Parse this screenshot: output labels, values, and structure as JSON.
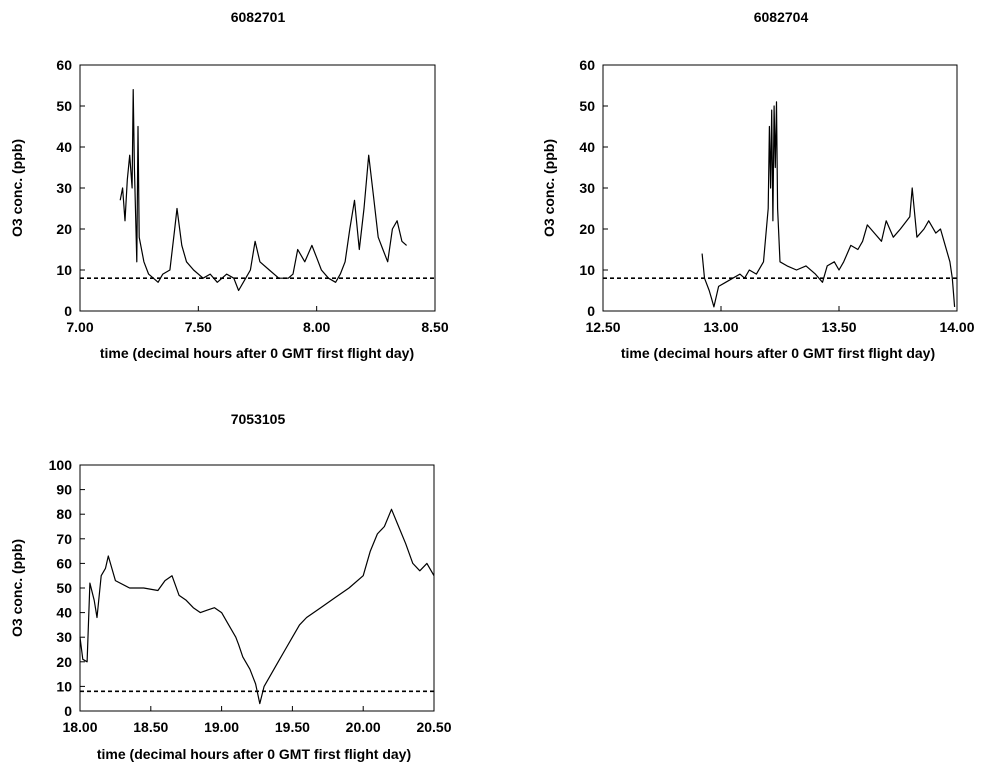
{
  "chart_data": [
    {
      "type": "line",
      "title": "6082701",
      "xlabel": "time  (decimal hours after 0 GMT first flight day)",
      "ylabel": "O3 conc.  (ppb)",
      "xlim": [
        7.0,
        8.5
      ],
      "ylim": [
        0,
        60
      ],
      "xticks": [
        "7.00",
        "7.50",
        "8.00",
        "8.50"
      ],
      "yticks": [
        "0",
        "10",
        "20",
        "30",
        "40",
        "50",
        "60"
      ],
      "threshold": 8,
      "grid": false,
      "x": [
        7.17,
        7.18,
        7.19,
        7.2,
        7.21,
        7.22,
        7.225,
        7.23,
        7.24,
        7.245,
        7.25,
        7.27,
        7.29,
        7.31,
        7.33,
        7.35,
        7.38,
        7.4,
        7.41,
        7.43,
        7.45,
        7.48,
        7.52,
        7.55,
        7.58,
        7.62,
        7.65,
        7.67,
        7.7,
        7.72,
        7.74,
        7.76,
        7.8,
        7.84,
        7.88,
        7.9,
        7.92,
        7.95,
        7.98,
        8.0,
        8.02,
        8.05,
        8.08,
        8.1,
        8.12,
        8.14,
        8.16,
        8.18,
        8.2,
        8.22,
        8.24,
        8.26,
        8.28,
        8.3,
        8.32,
        8.34,
        8.36,
        8.38
      ],
      "y": [
        27,
        30,
        22,
        32,
        38,
        30,
        54,
        35,
        12,
        45,
        18,
        12,
        9,
        8,
        7,
        9,
        10,
        20,
        25,
        16,
        12,
        10,
        8,
        9,
        7,
        9,
        8,
        5,
        8,
        10,
        17,
        12,
        10,
        8,
        8,
        9,
        15,
        12,
        16,
        13,
        10,
        8,
        7,
        9,
        12,
        20,
        27,
        15,
        25,
        38,
        28,
        18,
        15,
        12,
        20,
        22,
        17,
        16
      ]
    },
    {
      "type": "line",
      "title": "6082704",
      "xlabel": "time  (decimal hours after 0 GMT first flight day)",
      "ylabel": "O3 conc.  (ppb)",
      "xlim": [
        12.5,
        14.0
      ],
      "ylim": [
        0,
        60
      ],
      "xticks": [
        "12.50",
        "13.00",
        "13.50",
        "14.00"
      ],
      "yticks": [
        "0",
        "10",
        "20",
        "30",
        "40",
        "50",
        "60"
      ],
      "threshold": 8,
      "grid": false,
      "x": [
        12.92,
        12.93,
        12.95,
        12.96,
        12.97,
        12.99,
        13.02,
        13.05,
        13.08,
        13.1,
        13.12,
        13.15,
        13.18,
        13.2,
        13.205,
        13.21,
        13.215,
        13.22,
        13.225,
        13.23,
        13.235,
        13.24,
        13.25,
        13.28,
        13.32,
        13.36,
        13.4,
        13.43,
        13.45,
        13.48,
        13.5,
        13.52,
        13.55,
        13.58,
        13.6,
        13.62,
        13.65,
        13.68,
        13.7,
        13.73,
        13.76,
        13.8,
        13.81,
        13.83,
        13.86,
        13.88,
        13.91,
        13.93,
        13.95,
        13.97,
        13.98,
        13.99
      ],
      "y": [
        14,
        8,
        5,
        3,
        1,
        6,
        7,
        8,
        9,
        8,
        10,
        9,
        12,
        25,
        45,
        30,
        49,
        22,
        50,
        35,
        51,
        25,
        12,
        11,
        10,
        11,
        9,
        7,
        11,
        12,
        10,
        12,
        16,
        15,
        17,
        21,
        19,
        17,
        22,
        18,
        20,
        23,
        30,
        18,
        20,
        22,
        19,
        20,
        16,
        12,
        8,
        1
      ]
    },
    {
      "type": "line",
      "title": "7053105",
      "xlabel": "time  (decimal hours after 0 GMT first flight day)",
      "ylabel": "O3 conc.  (ppb)",
      "xlim": [
        18.0,
        20.5
      ],
      "ylim": [
        0,
        100
      ],
      "xticks": [
        "18.00",
        "18.50",
        "19.00",
        "19.50",
        "20.00",
        "20.50"
      ],
      "yticks": [
        "0",
        "10",
        "20",
        "30",
        "40",
        "50",
        "60",
        "70",
        "80",
        "90",
        "100"
      ],
      "threshold": 8,
      "grid": false,
      "x": [
        18.0,
        18.02,
        18.05,
        18.07,
        18.1,
        18.12,
        18.15,
        18.18,
        18.2,
        18.25,
        18.35,
        18.45,
        18.55,
        18.6,
        18.65,
        18.7,
        18.75,
        18.8,
        18.85,
        18.9,
        18.95,
        19.0,
        19.05,
        19.1,
        19.12,
        19.15,
        19.2,
        19.24,
        19.27,
        19.3,
        19.35,
        19.4,
        19.45,
        19.5,
        19.55,
        19.6,
        19.7,
        19.8,
        19.9,
        20.0,
        20.05,
        20.1,
        20.15,
        20.2,
        20.25,
        20.3,
        20.35,
        20.4,
        20.45,
        20.5
      ],
      "y": [
        30,
        21,
        20,
        52,
        45,
        38,
        55,
        58,
        63,
        53,
        50,
        50,
        49,
        53,
        55,
        47,
        45,
        42,
        40,
        41,
        42,
        40,
        35,
        30,
        27,
        22,
        17,
        11,
        3,
        10,
        15,
        20,
        25,
        30,
        35,
        38,
        42,
        46,
        50,
        55,
        65,
        72,
        75,
        82,
        75,
        68,
        60,
        57,
        60,
        55
      ]
    }
  ]
}
